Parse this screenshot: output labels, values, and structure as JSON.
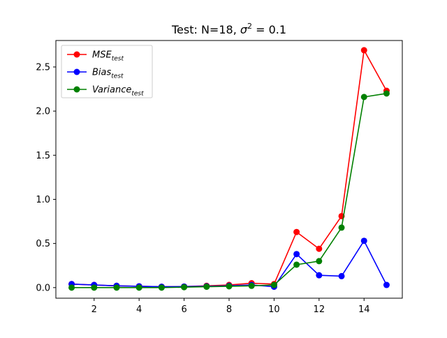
{
  "chart_data": {
    "type": "line",
    "title": {
      "prefix": "Test: N=18, ",
      "sigma_symbol": "σ",
      "exponent": "2",
      "suffix": " = 0.1"
    },
    "xlabel": "",
    "ylabel": "",
    "x": [
      1,
      2,
      3,
      4,
      5,
      6,
      7,
      8,
      9,
      10,
      11,
      12,
      13,
      14,
      15
    ],
    "xlim": [
      0.3,
      15.7
    ],
    "ylim": [
      -0.12,
      2.8
    ],
    "xticks": [
      2,
      4,
      6,
      8,
      10,
      12,
      14
    ],
    "xtick_labels": [
      "2",
      "4",
      "6",
      "8",
      "10",
      "12",
      "14"
    ],
    "yticks": [
      0.0,
      0.5,
      1.0,
      1.5,
      2.0,
      2.5
    ],
    "ytick_labels": [
      "0.0",
      "0.5",
      "1.0",
      "1.5",
      "2.0",
      "2.5"
    ],
    "grid": false,
    "legend_position": "top-left",
    "series": [
      {
        "name": "MSE",
        "subscript": "test",
        "color": "#ff0000",
        "values": [
          0.04,
          0.03,
          0.02,
          0.015,
          0.01,
          0.012,
          0.02,
          0.03,
          0.05,
          0.04,
          0.63,
          0.44,
          0.81,
          2.69,
          2.23
        ]
      },
      {
        "name": "Bias",
        "subscript": "test",
        "color": "#0000ff",
        "values": [
          0.04,
          0.03,
          0.02,
          0.015,
          0.01,
          0.012,
          0.015,
          0.02,
          0.03,
          0.01,
          0.38,
          0.14,
          0.13,
          0.53,
          0.03
        ]
      },
      {
        "name": "Variance",
        "subscript": "test",
        "color": "#008000",
        "values": [
          0.0,
          0.0,
          0.0,
          0.0,
          0.0,
          0.005,
          0.01,
          0.015,
          0.02,
          0.03,
          0.26,
          0.3,
          0.68,
          2.16,
          2.2
        ]
      }
    ]
  }
}
